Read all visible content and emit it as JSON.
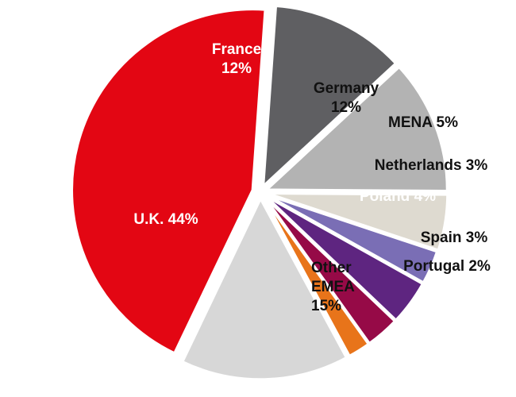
{
  "chart_data": {
    "type": "pie",
    "slices": [
      {
        "label": "France",
        "value": 12,
        "lines": [
          "France",
          "12%"
        ],
        "color": "#5f5f62",
        "text_color": "#ffffff"
      },
      {
        "label": "Germany",
        "value": 12,
        "lines": [
          "Germany",
          "12%"
        ],
        "color": "#b3b3b3",
        "text_color": "#111111"
      },
      {
        "label": "MENA",
        "value": 5,
        "lines": [
          "MENA 5%"
        ],
        "color": "#dedad0",
        "text_color": "#111111"
      },
      {
        "label": "Netherlands",
        "value": 3,
        "lines": [
          "Netherlands 3%"
        ],
        "color": "#7a6eb5",
        "text_color": "#111111"
      },
      {
        "label": "Poland",
        "value": 4,
        "lines": [
          "Poland 4%"
        ],
        "color": "#5e2580",
        "text_color": "#ffffff"
      },
      {
        "label": "Spain",
        "value": 3,
        "lines": [
          "Spain 3%"
        ],
        "color": "#960a47",
        "text_color": "#111111"
      },
      {
        "label": "Portugal",
        "value": 2,
        "lines": [
          "Portugal 2%"
        ],
        "color": "#e8741a",
        "text_color": "#111111"
      },
      {
        "label": "Other EMEA",
        "value": 15,
        "lines": [
          "Other",
          "EMEA",
          "15%"
        ],
        "color": "#d7d7d7",
        "text_color": "#111111"
      },
      {
        "label": "U.K.",
        "value": 44,
        "lines": [
          "U.K. 44%"
        ],
        "color": "#e30613",
        "text_color": "#ffffff"
      }
    ]
  }
}
